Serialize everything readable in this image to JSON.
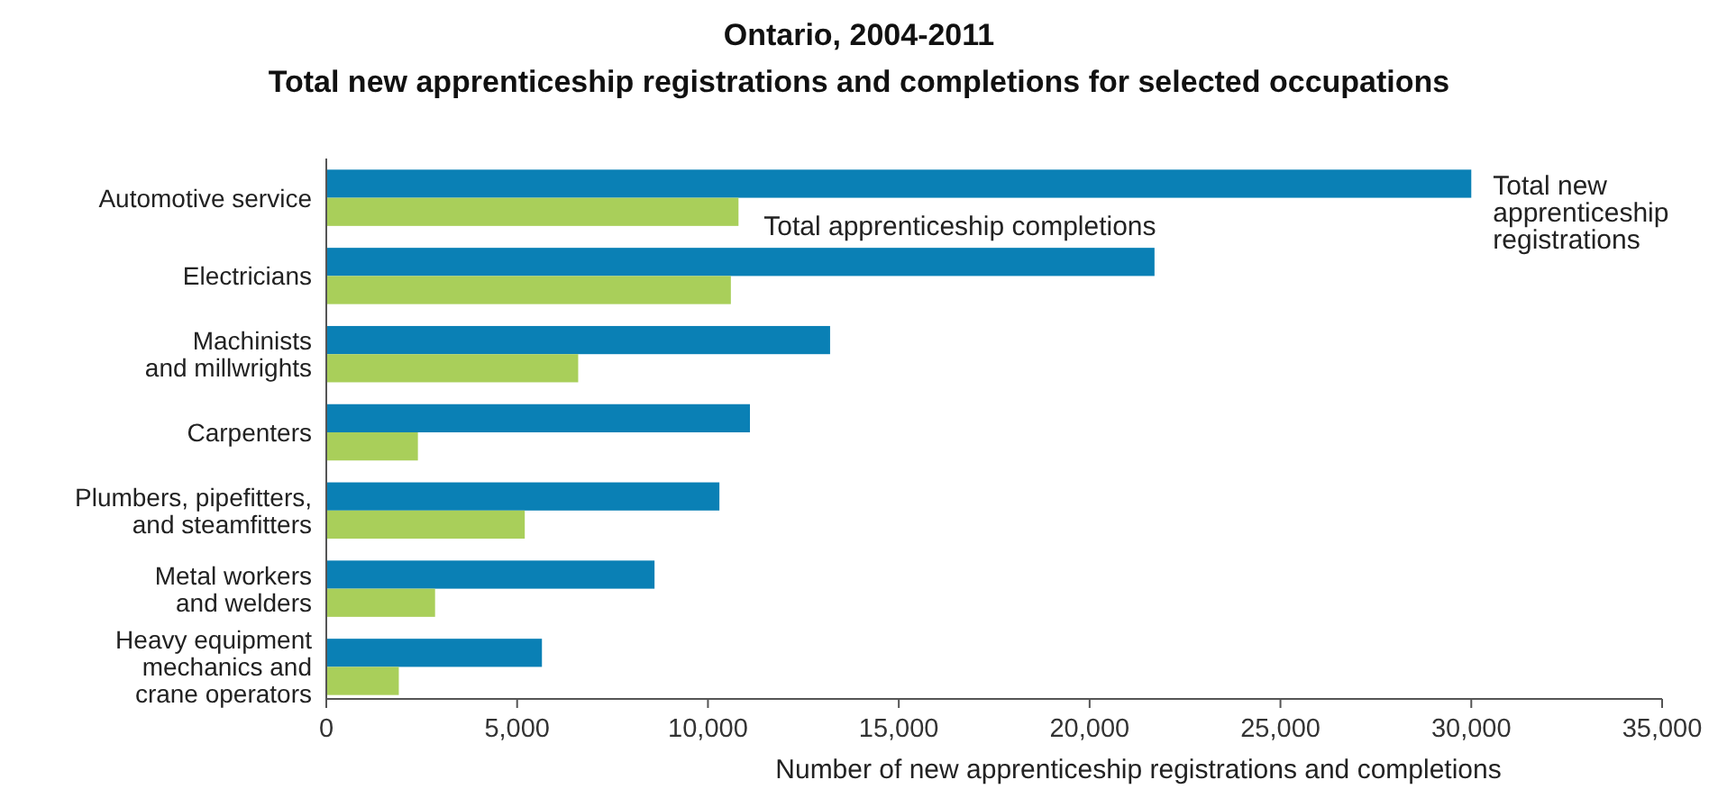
{
  "chart_data": {
    "type": "bar",
    "orientation": "horizontal",
    "title": "Ontario, 2004-2011",
    "subtitle": "Total new apprenticeship registrations and completions for selected occupations",
    "xlabel": "Number of new apprenticeship registrations and completions",
    "categories": [
      "Automotive service",
      "Electricians",
      "Machinists\nand millwrights",
      "Carpenters",
      "Plumbers, pipefitters,\nand steamfitters",
      "Metal workers\nand welders",
      "Heavy equipment\nmechanics and\ncrane operators"
    ],
    "series": [
      {
        "name": "Total new\napprenticeship\nregistrations",
        "color": "#0a80b5",
        "values": [
          30000,
          21700,
          13200,
          11100,
          10300,
          8600,
          5650
        ]
      },
      {
        "name": "Total apprenticeship completions",
        "color": "#a9cf5a",
        "values": [
          10800,
          10600,
          6600,
          2400,
          5200,
          2850,
          1900
        ]
      }
    ],
    "xlim": [
      0,
      35000
    ],
    "xticks": [
      {
        "value": 0,
        "label": "0"
      },
      {
        "value": 5000,
        "label": "5,000"
      },
      {
        "value": 10000,
        "label": "10,000"
      },
      {
        "value": 15000,
        "label": "15,000"
      },
      {
        "value": 20000,
        "label": "20,000"
      },
      {
        "value": 25000,
        "label": "25,000"
      },
      {
        "value": 30000,
        "label": "30,000"
      },
      {
        "value": 35000,
        "label": "35,000"
      }
    ],
    "grid": false,
    "legend": false
  }
}
